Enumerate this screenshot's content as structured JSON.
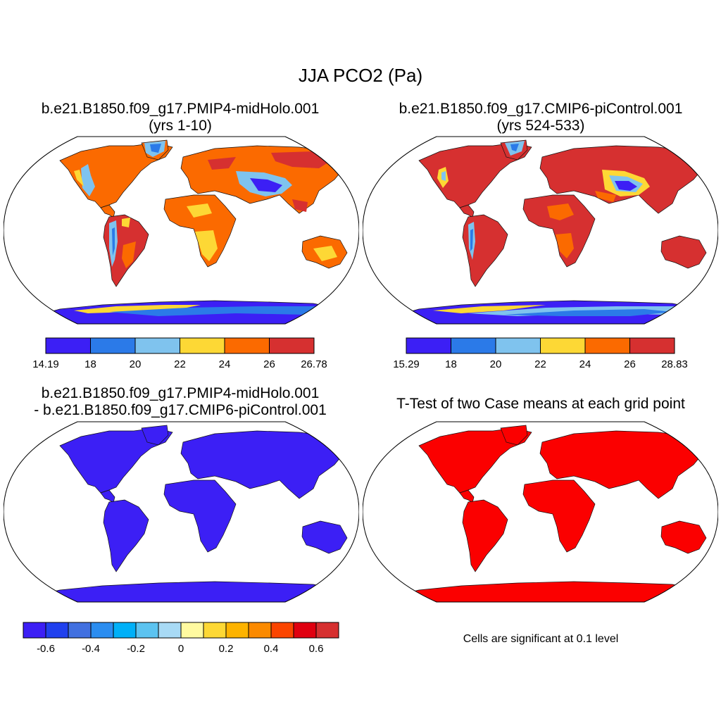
{
  "title": "JJA PCO2 (Pa)",
  "colors": {
    "seq": [
      "#3c1ff5",
      "#2b7ae8",
      "#7fc3ee",
      "#fdd835",
      "#fb6a00",
      "#d63030"
    ],
    "diff": [
      "#3c1ff5",
      "#2040ee",
      "#4170e0",
      "#2b8df0",
      "#00b0f8",
      "#5cc3f0",
      "#a8daf5",
      "#fffaa0",
      "#fdd835",
      "#fdb300",
      "#fb8a00",
      "#fb4500",
      "#e00010",
      "#d63030"
    ],
    "ttest": "#fb0000",
    "ocean": "#ffffff"
  },
  "panels": [
    {
      "id": "midholo",
      "title_line1": "b.e21.B1850.f09_g17.PMIP4-midHolo.001",
      "title_line2": "(yrs 1-10)",
      "colorbar": {
        "min_label": "14.19",
        "max_label": "26.78",
        "ticks": [
          "18",
          "20",
          "22",
          "24",
          "26"
        ]
      }
    },
    {
      "id": "picontrol",
      "title_line1": "b.e21.B1850.f09_g17.CMIP6-piControl.001",
      "title_line2": "(yrs 524-533)",
      "colorbar": {
        "min_label": "15.29",
        "max_label": "28.83",
        "ticks": [
          "18",
          "20",
          "22",
          "24",
          "26"
        ]
      }
    },
    {
      "id": "difference",
      "title_line1": "b.e21.B1850.f09_g17.PMIP4-midHolo.001",
      "title_line2": "- b.e21.B1850.f09_g17.CMIP6-piControl.001",
      "colorbar": {
        "ticks": [
          "-0.6",
          "-0.4",
          "-0.2",
          "0",
          "0.2",
          "0.4",
          "0.6"
        ]
      }
    },
    {
      "id": "ttest",
      "title_line1": "T-Test of two Case means at each grid point",
      "note": "Cells are significant at 0.1 level"
    }
  ]
}
